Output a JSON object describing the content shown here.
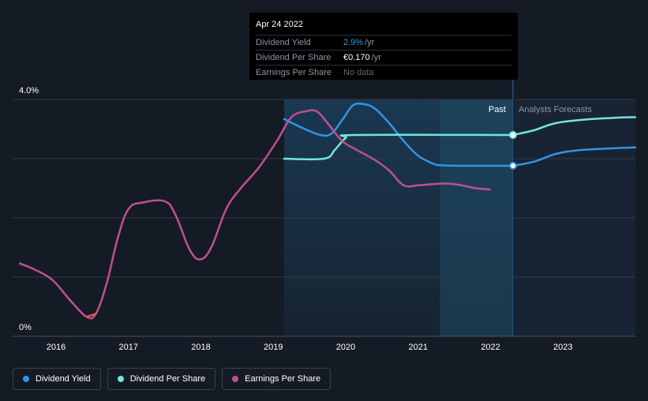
{
  "colors": {
    "dividend_yield": "#2f96e6",
    "dividend_per_share": "#72e8d4",
    "earnings_per_share": "#c0508f",
    "earnings_negative": "#e05550",
    "past_label": "#ffffff",
    "forecast_label": "#8b96a4"
  },
  "tooltip": {
    "date": "Apr 24 2022",
    "rows": [
      {
        "label": "Dividend Yield",
        "value": "2.9%",
        "unit": "/yr",
        "color": "#2f96e6"
      },
      {
        "label": "Dividend Per Share",
        "value": "€0.170",
        "unit": "/yr",
        "color": "#ffffff"
      },
      {
        "label": "Earnings Per Share",
        "value": "No data",
        "unit": "",
        "color": "#5f6873"
      }
    ]
  },
  "regions": {
    "past_label": "Past",
    "forecast_label": "Analysts Forecasts"
  },
  "legend": {
    "items": [
      {
        "label": "Dividend Yield",
        "color": "#2f96e6"
      },
      {
        "label": "Dividend Per Share",
        "color": "#72e8d4"
      },
      {
        "label": "Earnings Per Share",
        "color": "#c0508f"
      }
    ]
  },
  "chart_data": {
    "type": "line",
    "title": "",
    "xlabel": "",
    "ylabel": "",
    "xlim": [
      2015.4,
      2024.0
    ],
    "ylim": [
      0,
      4.0
    ],
    "y_tick_labels": [
      {
        "value": 4.0,
        "label": "4.0%"
      },
      {
        "value": 0,
        "label": "0%"
      }
    ],
    "y_gridlines": [
      1.0,
      2.0,
      3.0,
      4.0
    ],
    "x_ticks": [
      {
        "value": 2016,
        "label": "2016"
      },
      {
        "value": 2017,
        "label": "2017"
      },
      {
        "value": 2018,
        "label": "2018"
      },
      {
        "value": 2019,
        "label": "2019"
      },
      {
        "value": 2020,
        "label": "2020"
      },
      {
        "value": 2021,
        "label": "2021"
      },
      {
        "value": 2022,
        "label": "2022"
      },
      {
        "value": 2023,
        "label": "2023"
      }
    ],
    "shaded_range_start": 2019.15,
    "past_region": [
      2021.3,
      2022.31
    ],
    "forecast_start": 2022.31,
    "series": [
      {
        "name": "Dividend Yield",
        "key": "dividend_yield",
        "points": [
          [
            2019.15,
            3.67
          ],
          [
            2019.4,
            3.52
          ],
          [
            2019.65,
            3.4
          ],
          [
            2019.8,
            3.42
          ],
          [
            2019.95,
            3.65
          ],
          [
            2020.1,
            3.9
          ],
          [
            2020.25,
            3.92
          ],
          [
            2020.4,
            3.85
          ],
          [
            2020.6,
            3.6
          ],
          [
            2020.8,
            3.3
          ],
          [
            2021.0,
            3.05
          ],
          [
            2021.2,
            2.92
          ],
          [
            2021.3,
            2.89
          ],
          [
            2021.6,
            2.88
          ],
          [
            2022.31,
            2.88
          ]
        ],
        "forecast_points": [
          [
            2022.31,
            2.88
          ],
          [
            2022.6,
            2.95
          ],
          [
            2022.9,
            3.08
          ],
          [
            2023.2,
            3.14
          ],
          [
            2023.6,
            3.17
          ],
          [
            2024.0,
            3.19
          ]
        ],
        "marker": [
          2022.31,
          2.88
        ]
      },
      {
        "name": "Dividend Per Share",
        "key": "dividend_per_share",
        "points": [
          [
            2019.15,
            3.0
          ],
          [
            2019.7,
            3.0
          ],
          [
            2019.85,
            3.15
          ],
          [
            2020.0,
            3.35
          ],
          [
            2020.15,
            3.4
          ],
          [
            2022.31,
            3.4
          ]
        ],
        "forecast_points": [
          [
            2022.31,
            3.4
          ],
          [
            2022.6,
            3.48
          ],
          [
            2022.9,
            3.6
          ],
          [
            2023.3,
            3.66
          ],
          [
            2023.7,
            3.69
          ],
          [
            2024.0,
            3.7
          ]
        ],
        "marker": [
          2022.31,
          3.4
        ]
      },
      {
        "name": "Earnings Per Share",
        "key": "earnings_per_share",
        "points": [
          [
            2015.5,
            1.23
          ],
          [
            2015.7,
            1.13
          ],
          [
            2015.95,
            0.95
          ],
          [
            2016.2,
            0.6
          ],
          [
            2016.42,
            0.33
          ],
          [
            2016.55,
            0.38
          ],
          [
            2016.7,
            0.9
          ],
          [
            2016.85,
            1.65
          ],
          [
            2017.0,
            2.15
          ],
          [
            2017.2,
            2.26
          ],
          [
            2017.5,
            2.28
          ],
          [
            2017.65,
            2.05
          ],
          [
            2017.85,
            1.45
          ],
          [
            2018.0,
            1.3
          ],
          [
            2018.15,
            1.52
          ],
          [
            2018.35,
            2.15
          ],
          [
            2018.55,
            2.5
          ],
          [
            2018.8,
            2.85
          ],
          [
            2019.05,
            3.3
          ],
          [
            2019.25,
            3.7
          ],
          [
            2019.45,
            3.8
          ],
          [
            2019.6,
            3.8
          ],
          [
            2019.75,
            3.6
          ],
          [
            2019.95,
            3.3
          ],
          [
            2020.15,
            3.15
          ],
          [
            2020.4,
            2.98
          ],
          [
            2020.6,
            2.8
          ],
          [
            2020.8,
            2.55
          ],
          [
            2021.0,
            2.55
          ],
          [
            2021.2,
            2.57
          ],
          [
            2021.4,
            2.58
          ],
          [
            2021.6,
            2.55
          ],
          [
            2021.8,
            2.5
          ],
          [
            2021.99,
            2.48
          ]
        ],
        "negative_segment": [
          2016.25,
          2016.68
        ]
      }
    ]
  }
}
